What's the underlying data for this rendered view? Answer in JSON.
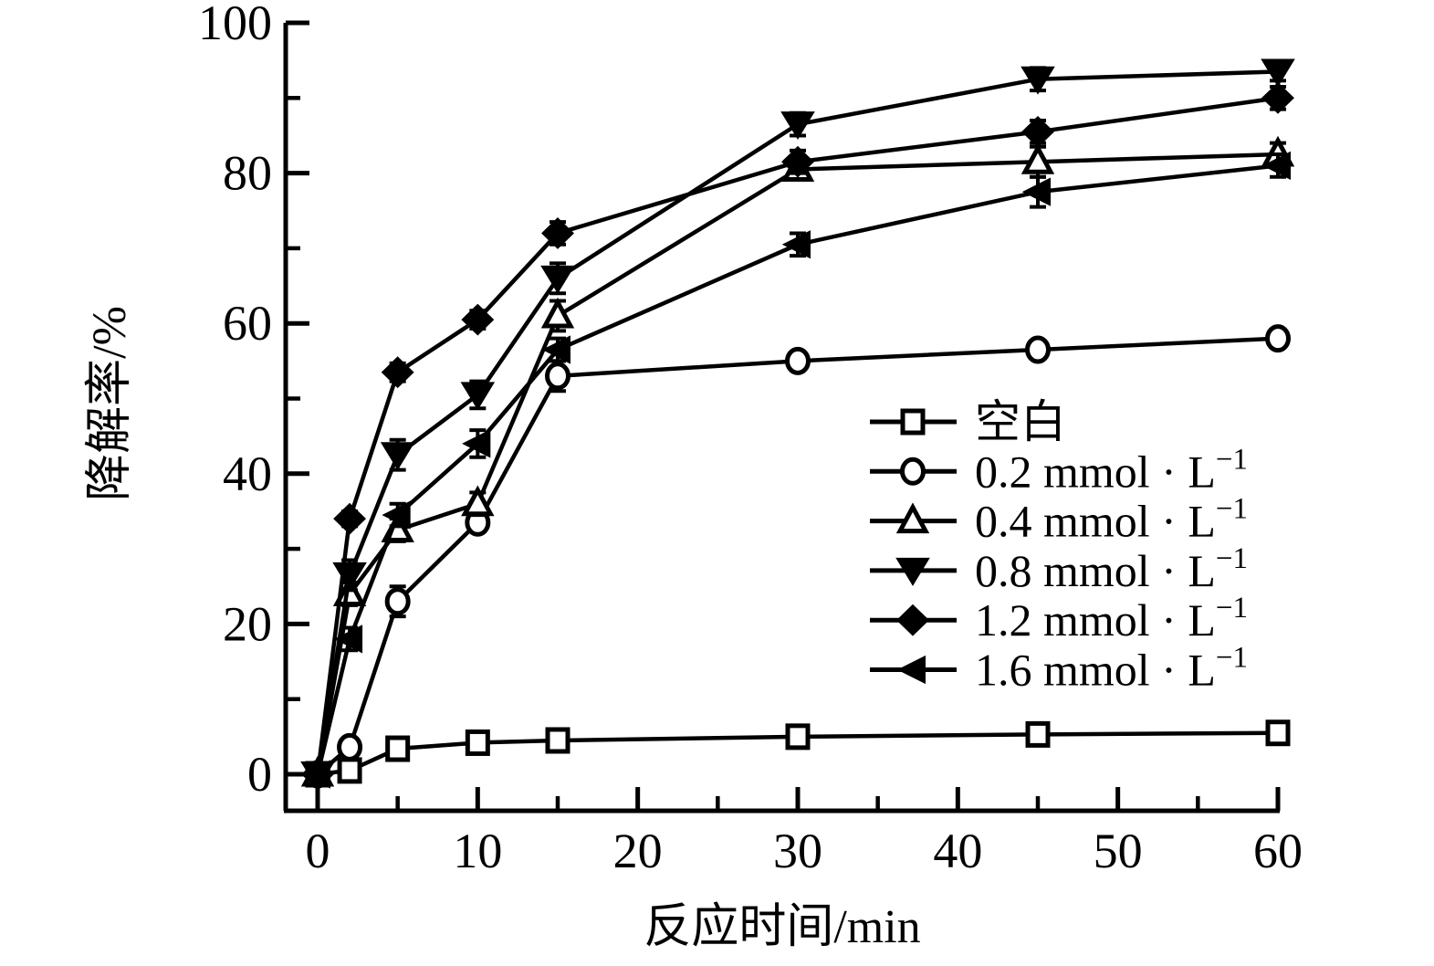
{
  "figure": {
    "background": "#ffffff",
    "foreground": "#000000"
  },
  "chart_data": {
    "type": "line",
    "title": "",
    "xlabel": "反应时间/min",
    "ylabel": "降解率/%",
    "x": [
      0,
      2,
      5,
      10,
      15,
      30,
      45,
      60
    ],
    "xlim": [
      -2,
      60
    ],
    "ylim": [
      -4.8,
      100
    ],
    "grid": false,
    "legend_position": "inside right-middle",
    "x_ticks": {
      "major": [
        0,
        10,
        20,
        30,
        40,
        50,
        60
      ],
      "minor": [
        5,
        15,
        25,
        35,
        45,
        55
      ]
    },
    "x_tick_labels": [
      "0",
      "10",
      "20",
      "30",
      "40",
      "50",
      "60"
    ],
    "y_ticks": {
      "major": [
        0,
        20,
        40,
        60,
        80,
        100
      ],
      "minor": [
        10,
        30,
        50,
        70,
        90
      ]
    },
    "y_tick_labels": [
      "0",
      "20",
      "40",
      "60",
      "80",
      "100"
    ],
    "series": [
      {
        "name": "空白",
        "legend_text": "空白",
        "legend_sup": "",
        "marker": "square-open",
        "color": "#000000",
        "values": [
          0,
          0.5,
          3.4,
          4.2,
          4.5,
          5.0,
          5.3,
          5.5
        ],
        "errors": [
          0,
          0.6,
          0.8,
          0.8,
          0.8,
          0.8,
          0.8,
          0.8
        ]
      },
      {
        "name": "0.2 mmol·L⁻¹",
        "legend_text": "0.2 mmol · L",
        "legend_sup": "−1",
        "marker": "circle-open",
        "color": "#000000",
        "values": [
          0,
          3.6,
          23,
          33.5,
          53,
          55,
          56.5,
          58
        ],
        "errors": [
          0,
          0.8,
          2,
          1.2,
          2,
          1,
          1.2,
          1
        ]
      },
      {
        "name": "0.4 mmol·L⁻¹",
        "legend_text": "0.4 mmol · L",
        "legend_sup": "−1",
        "marker": "triangle-up-open",
        "color": "#000000",
        "values": [
          0,
          24,
          32.5,
          36,
          61,
          80.5,
          81.5,
          82.5
        ],
        "errors": [
          0,
          1.5,
          1.5,
          1.5,
          2,
          1.2,
          2,
          1.5
        ]
      },
      {
        "name": "0.8 mmol·L⁻¹",
        "legend_text": "0.8 mmol · L",
        "legend_sup": "−1",
        "marker": "triangle-down-filled",
        "color": "#000000",
        "values": [
          0,
          26.5,
          42.5,
          50.5,
          66,
          86.5,
          92.5,
          93.5
        ],
        "errors": [
          0,
          2,
          2,
          1.8,
          2,
          1.5,
          1.5,
          1.2
        ]
      },
      {
        "name": "1.2 mmol·L⁻¹",
        "legend_text": "1.2  mmol · L",
        "legend_sup": "−1",
        "marker": "diamond-filled",
        "color": "#000000",
        "values": [
          0,
          34,
          53.5,
          60.5,
          72,
          81.5,
          85.5,
          90
        ],
        "errors": [
          0,
          1,
          1.2,
          1.2,
          1.5,
          1.5,
          1.5,
          1.5
        ]
      },
      {
        "name": "1.6 mmol·L⁻¹",
        "legend_text": "1.6 mmol · L",
        "legend_sup": "−1",
        "marker": "triangle-left-filled",
        "color": "#000000",
        "values": [
          0,
          18,
          34.5,
          44,
          56.5,
          70.5,
          77.5,
          81
        ],
        "errors": [
          0,
          1.5,
          1.5,
          1.8,
          1.5,
          1.5,
          2,
          1.5
        ]
      }
    ]
  }
}
